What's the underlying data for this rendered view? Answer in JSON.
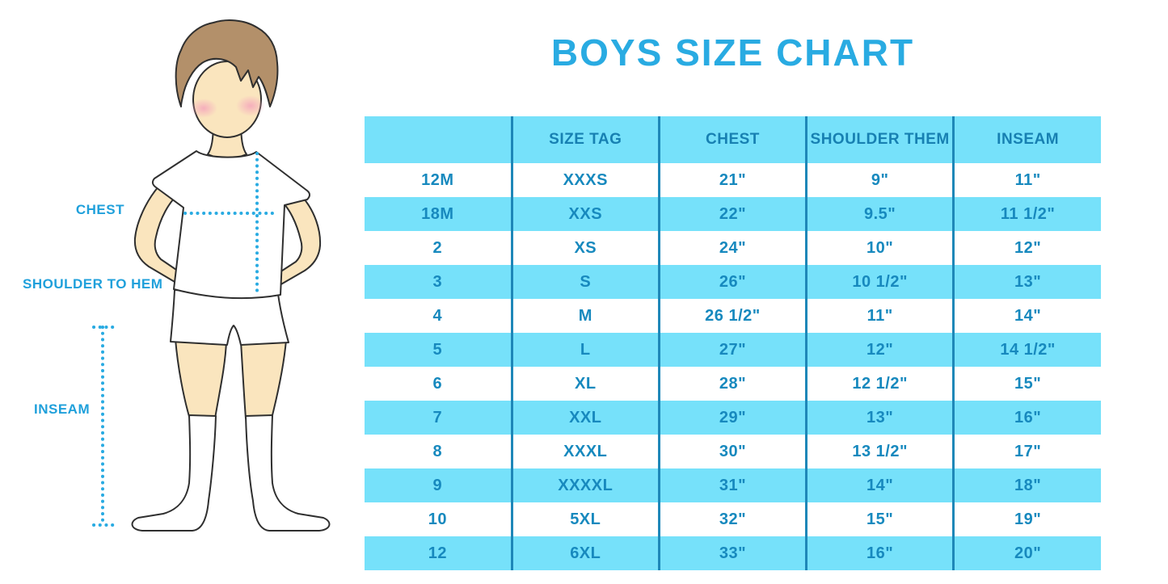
{
  "title": "BOYS SIZE CHART",
  "figure": {
    "labels": {
      "chest": "CHEST",
      "shoulder_to_hem": "SHOULDER TO HEM",
      "inseam": "INSEAM"
    }
  },
  "colors": {
    "accent_blue": "#29ABE2",
    "band_cyan": "#76E1FA",
    "table_text": "#1789BE",
    "column_line": "#1E87B8",
    "skin": "#FAE5BE",
    "hair": "#B3906A",
    "blush": "#F5A8BC"
  },
  "chart_data": {
    "type": "table",
    "title": "BOYS SIZE CHART",
    "headers": [
      "",
      "SIZE TAG",
      "CHEST",
      "SHOULDER THEM",
      "INSEAM"
    ],
    "rows": [
      [
        "12M",
        "XXXS",
        "21\"",
        "9\"",
        "11\""
      ],
      [
        "18M",
        "XXS",
        "22\"",
        "9.5\"",
        "11 1/2\""
      ],
      [
        "2",
        "XS",
        "24\"",
        "10\"",
        "12\""
      ],
      [
        "3",
        "S",
        "26\"",
        "10 1/2\"",
        "13\""
      ],
      [
        "4",
        "M",
        "26 1/2\"",
        "11\"",
        "14\""
      ],
      [
        "5",
        "L",
        "27\"",
        "12\"",
        "14 1/2\""
      ],
      [
        "6",
        "XL",
        "28\"",
        "12 1/2\"",
        "15\""
      ],
      [
        "7",
        "XXL",
        "29\"",
        "13\"",
        "16\""
      ],
      [
        "8",
        "XXXL",
        "30\"",
        "13 1/2\"",
        "17\""
      ],
      [
        "9",
        "XXXXL",
        "31\"",
        "14\"",
        "18\""
      ],
      [
        "10",
        "5XL",
        "32\"",
        "15\"",
        "19\""
      ],
      [
        "12",
        "6XL",
        "33\"",
        "16\"",
        "20\""
      ]
    ],
    "layout": {
      "row_striping": [
        "white",
        "cyan"
      ],
      "header_background": "cyan",
      "grid": "vertical-lines-only"
    }
  }
}
